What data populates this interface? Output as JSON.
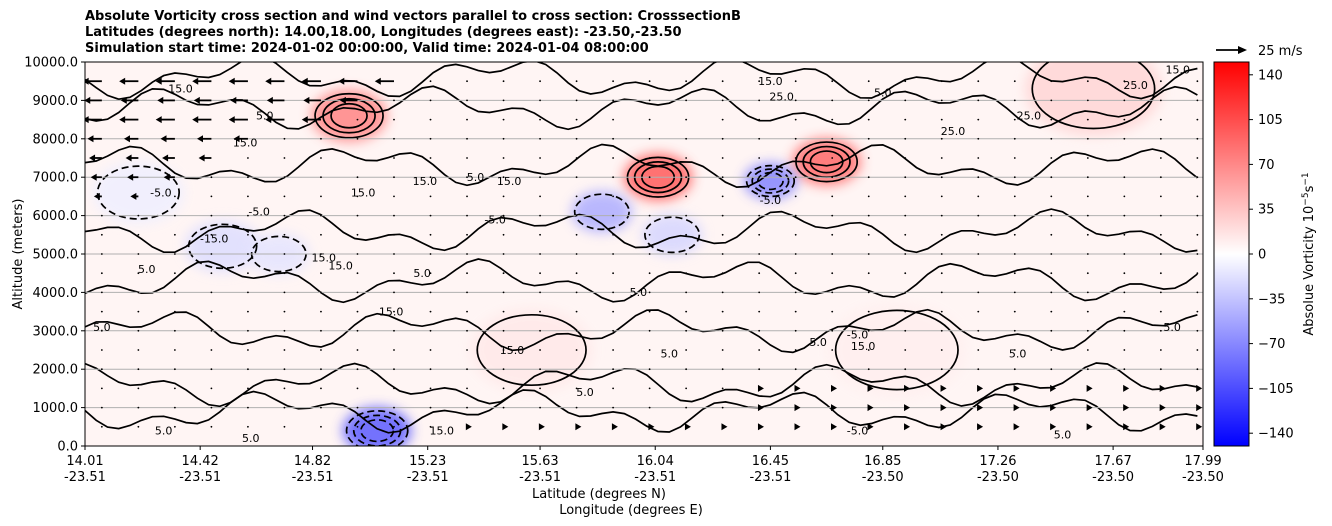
{
  "chart_data": {
    "type": "heatmap",
    "title": {
      "line1": "Absolute Vorticity cross section and wind vectors parallel to cross section: CrosssectionB",
      "line2": "Latitudes (degrees north): 14.00,18.00, Longitudes (degrees east): -23.50,-23.50",
      "line3": "Simulation start time: 2024-01-02 00:00:00, Valid time: 2024-01-04 08:00:00"
    },
    "ylabel": "Altitude (meters)",
    "xlabel_lat": "Latitude (degrees N)",
    "xlabel_lon": "Longitude (degrees E)",
    "ylim": [
      0,
      10000
    ],
    "yticks": [
      "0.0",
      "1000.0",
      "2000.0",
      "3000.0",
      "4000.0",
      "5000.0",
      "6000.0",
      "7000.0",
      "8000.0",
      "9000.0",
      "10000.0"
    ],
    "xlim": [
      14.01,
      17.99
    ],
    "xticks": [
      {
        "lat": "14.01",
        "lon": "-23.51"
      },
      {
        "lat": "14.42",
        "lon": "-23.51"
      },
      {
        "lat": "14.82",
        "lon": "-23.51"
      },
      {
        "lat": "15.23",
        "lon": "-23.51"
      },
      {
        "lat": "15.63",
        "lon": "-23.51"
      },
      {
        "lat": "16.04",
        "lon": "-23.51"
      },
      {
        "lat": "16.45",
        "lon": "-23.51"
      },
      {
        "lat": "16.85",
        "lon": "-23.50"
      },
      {
        "lat": "17.26",
        "lon": "-23.50"
      },
      {
        "lat": "17.67",
        "lon": "-23.50"
      },
      {
        "lat": "17.99",
        "lon": "-23.50"
      }
    ],
    "colorbar": {
      "label_prefix": "Absolue Vorticity 10",
      "label_exp1": "−5",
      "label_mid": "s",
      "label_exp2": "−1",
      "range": [
        -150,
        150
      ],
      "ticks": [
        140,
        105,
        70,
        35,
        0,
        -35,
        -70,
        -105,
        -140
      ],
      "tick_labels": [
        "140",
        "105",
        "70",
        "35",
        "0",
        "−35",
        "−70",
        "−105",
        "−140"
      ],
      "low_color": "#0000ff",
      "mid_color": "#ffffff",
      "high_color": "#ff0000"
    },
    "quiver_key": {
      "label": "25 m/s",
      "speed": 25
    },
    "wind_rows": [
      {
        "alt": 9500,
        "speed": -12,
        "from": 14.01,
        "to": 15.2
      },
      {
        "alt": 9000,
        "speed": -11,
        "from": 14.01,
        "to": 15.0
      },
      {
        "alt": 8500,
        "speed": -12,
        "from": 14.01,
        "to": 14.9
      },
      {
        "alt": 8000,
        "speed": -9,
        "from": 14.01,
        "to": 14.7
      },
      {
        "alt": 7500,
        "speed": -8,
        "from": 14.01,
        "to": 14.5
      },
      {
        "alt": 7000,
        "speed": -7,
        "from": 14.01,
        "to": 14.4
      },
      {
        "alt": 6500,
        "speed": -5,
        "from": 14.01,
        "to": 14.3
      },
      {
        "alt": 1500,
        "speed": 3,
        "from": 16.4,
        "to": 17.99
      },
      {
        "alt": 1000,
        "speed": 3,
        "from": 16.3,
        "to": 17.99
      },
      {
        "alt": 500,
        "speed": 3,
        "from": 15.3,
        "to": 17.99
      }
    ],
    "vorticity_features": [
      {
        "lat": 14.95,
        "alt": 8600,
        "value": 45,
        "size": 1.0
      },
      {
        "lat": 16.05,
        "alt": 7000,
        "value": 60,
        "size": 0.9
      },
      {
        "lat": 16.65,
        "alt": 7400,
        "value": 55,
        "size": 0.9
      },
      {
        "lat": 16.45,
        "alt": 6900,
        "value": -45,
        "size": 0.7
      },
      {
        "lat": 15.85,
        "alt": 6100,
        "value": -30,
        "size": 0.8
      },
      {
        "lat": 16.1,
        "alt": 5500,
        "value": -15,
        "size": 0.8
      },
      {
        "lat": 14.5,
        "alt": 5200,
        "value": -12,
        "size": 1.0
      },
      {
        "lat": 14.7,
        "alt": 5000,
        "value": -10,
        "size": 0.8
      },
      {
        "lat": 14.2,
        "alt": 6600,
        "value": -6,
        "size": 1.2
      },
      {
        "lat": 15.05,
        "alt": 400,
        "value": -60,
        "size": 0.9
      },
      {
        "lat": 17.6,
        "alt": 9300,
        "value": 15,
        "size": 1.8
      },
      {
        "lat": 15.6,
        "alt": 2500,
        "value": 8,
        "size": 1.6
      },
      {
        "lat": 16.9,
        "alt": 2500,
        "value": 6,
        "size": 1.8
      }
    ],
    "contour_labels": [
      {
        "text": "15.0",
        "lat": 14.35,
        "alt": 9200
      },
      {
        "text": "15.0",
        "lat": 14.58,
        "alt": 7800
      },
      {
        "text": "5.0",
        "lat": 14.65,
        "alt": 8500
      },
      {
        "text": "-5.0",
        "lat": 14.28,
        "alt": 6500
      },
      {
        "text": "-15.0",
        "lat": 14.47,
        "alt": 5300
      },
      {
        "text": "-5.0",
        "lat": 14.63,
        "alt": 6000
      },
      {
        "text": "15.0",
        "lat": 15.22,
        "alt": 6800
      },
      {
        "text": "5.0",
        "lat": 15.4,
        "alt": 6900
      },
      {
        "text": "15.0",
        "lat": 15.0,
        "alt": 6500
      },
      {
        "text": "15.0",
        "lat": 14.86,
        "alt": 4800
      },
      {
        "text": "15.0",
        "lat": 14.92,
        "alt": 4600
      },
      {
        "text": "5.0",
        "lat": 15.21,
        "alt": 4400
      },
      {
        "text": "5.0",
        "lat": 14.23,
        "alt": 4500
      },
      {
        "text": "-5.0",
        "lat": 15.47,
        "alt": 5800
      },
      {
        "text": "15.0",
        "lat": 15.52,
        "alt": 6800
      },
      {
        "text": "-5.0",
        "lat": 16.45,
        "alt": 6300
      },
      {
        "text": "25.0",
        "lat": 16.49,
        "alt": 9000
      },
      {
        "text": "15.0",
        "lat": 16.45,
        "alt": 9400
      },
      {
        "text": "25.0",
        "lat": 17.37,
        "alt": 8500
      },
      {
        "text": "25.0",
        "lat": 17.1,
        "alt": 8100
      },
      {
        "text": "5.0",
        "lat": 16.85,
        "alt": 9100
      },
      {
        "text": "-5.0",
        "lat": 16.76,
        "alt": 2800
      },
      {
        "text": "15.0",
        "lat": 16.78,
        "alt": 2500
      },
      {
        "text": "5.0",
        "lat": 16.62,
        "alt": 2600
      },
      {
        "text": "5.0",
        "lat": 15.79,
        "alt": 1300
      },
      {
        "text": "15.0",
        "lat": 15.28,
        "alt": 300
      },
      {
        "text": "-5.0",
        "lat": 16.76,
        "alt": 300
      },
      {
        "text": "5.0",
        "lat": 17.33,
        "alt": 2300
      },
      {
        "text": "5.0",
        "lat": 17.49,
        "alt": 200
      },
      {
        "text": "15.0",
        "lat": 15.53,
        "alt": 2400
      },
      {
        "text": "15.0",
        "lat": 15.1,
        "alt": 3400
      },
      {
        "text": "5.0",
        "lat": 14.29,
        "alt": 300
      },
      {
        "text": "5.0",
        "lat": 14.6,
        "alt": 100
      },
      {
        "text": "15.0",
        "lat": 17.9,
        "alt": 9700
      },
      {
        "text": "25.0",
        "lat": 17.75,
        "alt": 9300
      },
      {
        "text": "5.0",
        "lat": 17.88,
        "alt": 3000
      },
      {
        "text": "5.0",
        "lat": 14.07,
        "alt": 3000
      },
      {
        "text": "5.0",
        "lat": 15.98,
        "alt": 3900
      },
      {
        "text": "5.0",
        "lat": 16.09,
        "alt": 2300
      }
    ]
  }
}
